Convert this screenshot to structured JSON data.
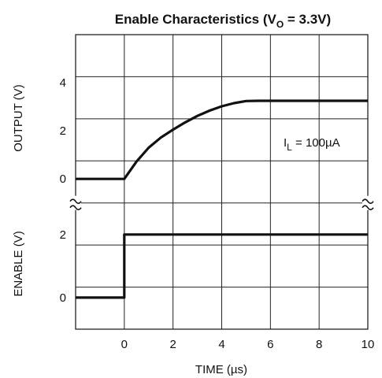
{
  "chart_data": {
    "type": "line",
    "title": {
      "prefix": "Enable Characteristics (V",
      "subscript": "O",
      "suffix": " = 3.3V)"
    },
    "xlabel": "TIME (µs)",
    "xlim": [
      -2,
      10
    ],
    "x_ticks": [
      "0",
      "2",
      "4",
      "6",
      "8",
      "10"
    ],
    "x_tick_values": [
      0,
      2,
      4,
      6,
      8,
      10
    ],
    "panels": [
      {
        "ylabel": "OUTPUT (V)",
        "ylim": [
          -1,
          6
        ],
        "y_ticks": [
          "0",
          "2",
          "4"
        ],
        "y_tick_values": [
          0,
          2,
          4
        ],
        "annotation": {
          "prefix": "I",
          "subscript": "L",
          "suffix": " = 100µA"
        },
        "series": [
          {
            "x": [
              -2,
              0,
              0.5,
              1,
              1.5,
              2,
              2.5,
              3,
              3.5,
              4,
              4.5,
              5,
              5.5,
              6,
              7,
              8,
              9,
              10
            ],
            "y": [
              0,
              0,
              0.72,
              1.3,
              1.72,
              2.05,
              2.35,
              2.62,
              2.84,
              3.02,
              3.15,
              3.24,
              3.25,
              3.25,
              3.25,
              3.25,
              3.25,
              3.25
            ]
          }
        ]
      },
      {
        "ylabel": "ENABLE (V)",
        "ylim": [
          -1,
          3
        ],
        "y_ticks": [
          "0",
          "2"
        ],
        "y_tick_values": [
          0,
          2
        ],
        "series": [
          {
            "x": [
              -2,
              0,
              0,
              10
            ],
            "y": [
              0,
              0,
              2,
              2
            ]
          }
        ]
      }
    ],
    "break_marks": true,
    "grid": true,
    "colors": {
      "trace": "#111111",
      "grid": "#222222"
    }
  }
}
